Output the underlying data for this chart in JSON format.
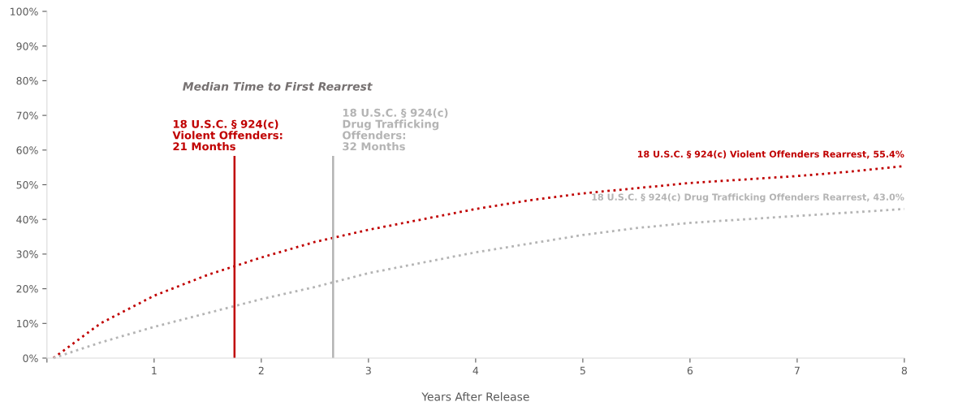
{
  "chart_data": {
    "type": "line",
    "title": "Median Time to First Rearrest",
    "xlabel": "Years After Release",
    "x": [
      0.06,
      0.5,
      1,
      1.5,
      2,
      2.5,
      3,
      3.5,
      4,
      4.5,
      5,
      5.5,
      6,
      6.5,
      7,
      7.5,
      8
    ],
    "series": [
      {
        "name": "18 U.S.C. § 924(c) Violent Offenders Rearrest, 55.4%",
        "color": "#c00000",
        "line_style": "dotted",
        "values": [
          0,
          10,
          18,
          24,
          29,
          33.5,
          37,
          40,
          43,
          45.5,
          47.5,
          49,
          50.5,
          51.5,
          52.5,
          53.8,
          55.4
        ]
      },
      {
        "name": "18 U.S.C. § 924(c) Drug Trafficking Offenders Rearrest, 43.0%",
        "color": "#b4b4b4",
        "line_style": "dotted",
        "values": [
          0,
          4.5,
          9,
          13,
          17,
          20.5,
          24.5,
          27.5,
          30.5,
          33,
          35.5,
          37.5,
          39,
          40,
          41,
          42,
          43.0
        ]
      }
    ],
    "ref_lines": [
      {
        "axis": "x",
        "value": 1.75,
        "color": "#c00000",
        "line_style": "solid"
      },
      {
        "axis": "x",
        "value": 2.67,
        "color": "#b4b4b4",
        "line_style": "solid"
      }
    ],
    "annotations": [
      "18 U.S.C. § 924(c)\nViolent Offenders:\n21 Months",
      "18 U.S.C. § 924(c)\nDrug Trafficking\nOffenders:\n32 Months"
    ],
    "xlim": [
      0,
      8
    ],
    "xticks": [
      {
        "value": 0,
        "label": null
      },
      1,
      2,
      3,
      4,
      5,
      6,
      7,
      8
    ],
    "ylim": [
      0,
      100
    ],
    "yticks": [
      {
        "value": 0,
        "label": "0%"
      },
      {
        "value": 10,
        "label": "10%"
      },
      {
        "value": 20,
        "label": "20%"
      },
      {
        "value": 30,
        "label": "30%"
      },
      {
        "value": 40,
        "label": "40%"
      },
      {
        "value": 50,
        "label": "50%"
      },
      {
        "value": 60,
        "label": "60%"
      },
      {
        "value": 70,
        "label": "70%"
      },
      {
        "value": 80,
        "label": "80%"
      },
      {
        "value": 90,
        "label": "90%"
      },
      {
        "value": 100,
        "label": "100%"
      }
    ],
    "grid": false,
    "legend": false
  }
}
